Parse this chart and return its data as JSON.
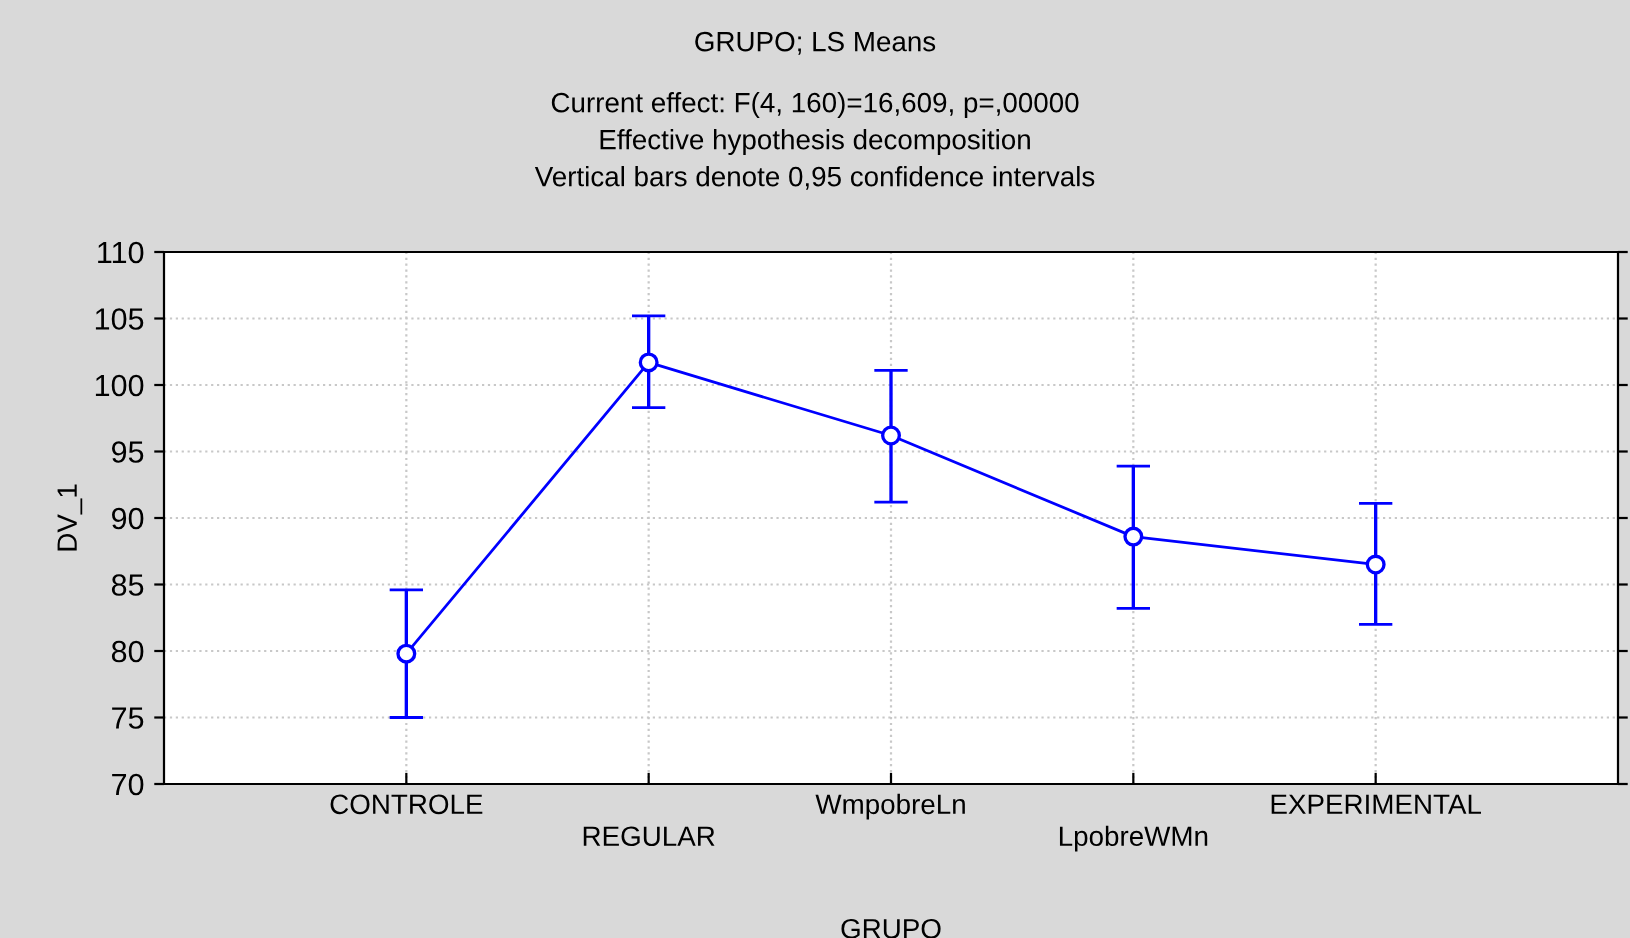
{
  "chart_data": {
    "type": "line",
    "title": "GRUPO; LS Means",
    "subtitle": "Current effect: F(4, 160)=16,609, p=,00000\nEffective hypothesis decomposition\nVertical bars denote 0,95 confidence intervals",
    "xlabel": "GRUPO",
    "ylabel": "DV_1",
    "categories": [
      "CONTROLE",
      "REGULAR",
      "WmpobreLn",
      "LpobreWMn",
      "EXPERIMENTAL"
    ],
    "series": [
      {
        "color": "#0000ff",
        "values": [
          79.8,
          101.7,
          96.2,
          88.6,
          86.5
        ],
        "errors": [
          [
            75.0,
            84.6
          ],
          [
            98.3,
            105.2
          ],
          [
            91.2,
            101.1
          ],
          [
            83.2,
            93.9
          ],
          [
            82.0,
            91.1
          ]
        ]
      }
    ],
    "ylim": [
      70,
      110
    ],
    "yticks": [
      70,
      75,
      80,
      85,
      90,
      95,
      100,
      105,
      110
    ],
    "grid": true,
    "marker": "circle",
    "line_style": "solid"
  }
}
